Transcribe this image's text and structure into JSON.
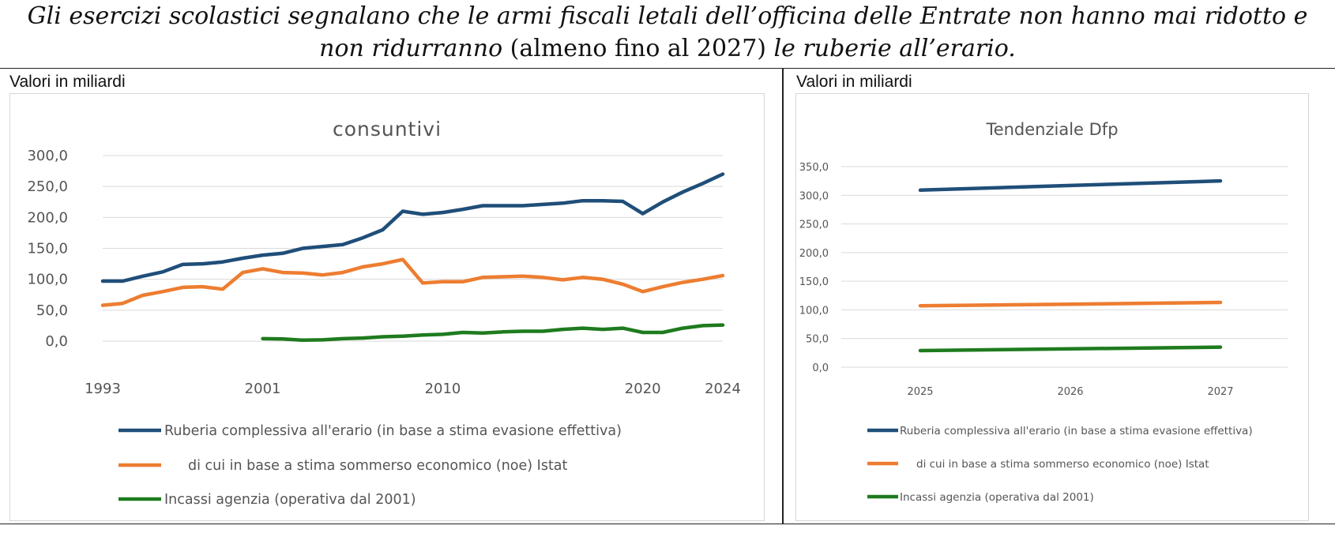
{
  "caption": {
    "line1": "Gli esercizi scolastici segnalano che le armi fiscali letali dell’officina delle Entrate non hanno mai ridotto e",
    "line2_italic_a": "non ridurranno",
    "line2_plain": " (almeno fino al 2027) ",
    "line2_italic_b": "le ruberie all’erario."
  },
  "colors": {
    "ruberia": "#1f4e79",
    "noe": "#ed7d31",
    "incassi": "#1e7b1e"
  },
  "chart_data": [
    {
      "type": "line",
      "unit_label": "Valori in miliardi",
      "title": "consuntivi",
      "ylim": [
        0,
        300
      ],
      "yticks": [
        "0,0",
        "50,0",
        "100,0",
        "150,0",
        "200,0",
        "250,0",
        "300,0"
      ],
      "xlim": [
        1993,
        2024
      ],
      "xtick_labels": [
        "1993",
        "2001",
        "2010",
        "2020",
        "2024"
      ],
      "xtick_values": [
        1993,
        2001,
        2010,
        2020,
        2024
      ],
      "series": [
        {
          "name": "Ruberia complessiva all'erario (in base a stima evasione effettiva)",
          "key": "ruberia",
          "x": [
            1993,
            1994,
            1995,
            1996,
            1997,
            1998,
            1999,
            2000,
            2001,
            2002,
            2003,
            2004,
            2005,
            2006,
            2007,
            2008,
            2009,
            2010,
            2011,
            2012,
            2013,
            2014,
            2015,
            2016,
            2017,
            2018,
            2019,
            2020,
            2021,
            2022,
            2023,
            2024
          ],
          "values": [
            97,
            97,
            105,
            112,
            124,
            125,
            128,
            134,
            139,
            142,
            150,
            153,
            156,
            167,
            180,
            210,
            205,
            208,
            213,
            219,
            219,
            219,
            221,
            223,
            227,
            227,
            226,
            206,
            225,
            241,
            255,
            270
          ]
        },
        {
          "name": "di cui in base a stima sommerso economico (noe) Istat",
          "key": "noe",
          "x": [
            1993,
            1994,
            1995,
            1996,
            1997,
            1998,
            1999,
            2000,
            2001,
            2002,
            2003,
            2004,
            2005,
            2006,
            2007,
            2008,
            2009,
            2010,
            2011,
            2012,
            2013,
            2014,
            2015,
            2016,
            2017,
            2018,
            2019,
            2020,
            2021,
            2022,
            2023,
            2024
          ],
          "values": [
            58,
            61,
            74,
            80,
            87,
            88,
            84,
            111,
            117,
            111,
            110,
            107,
            111,
            120,
            125,
            132,
            94,
            96,
            96,
            103,
            104,
            105,
            103,
            99,
            103,
            100,
            92,
            80,
            88,
            95,
            100,
            106
          ]
        },
        {
          "name": "Incassi agenzia (operativa dal 2001)",
          "key": "incassi",
          "x": [
            2001,
            2002,
            2003,
            2004,
            2005,
            2006,
            2007,
            2008,
            2009,
            2010,
            2011,
            2012,
            2013,
            2014,
            2015,
            2016,
            2017,
            2018,
            2019,
            2020,
            2021,
            2022,
            2023,
            2024
          ],
          "values": [
            4,
            3.5,
            1.5,
            2,
            4,
            5,
            7,
            8,
            10,
            11,
            14,
            13,
            15,
            16,
            16,
            19,
            21,
            19,
            21,
            14,
            14,
            21,
            25,
            26
          ]
        }
      ]
    },
    {
      "type": "line",
      "unit_label": "Valori in miliardi",
      "title": "Tendenziale Dfp",
      "ylim": [
        0,
        350
      ],
      "yticks": [
        "0,0",
        "50,0",
        "100,0",
        "150,0",
        "200,0",
        "250,0",
        "300,0",
        "350,0"
      ],
      "categories": [
        "2025",
        "2026",
        "2027"
      ],
      "series": [
        {
          "name": "Ruberia complessiva all'erario (in base a stima evasione effettiva)",
          "key": "ruberia",
          "values": [
            309,
            317,
            325
          ]
        },
        {
          "name": "di cui in base a stima sommerso economico (noe) Istat",
          "key": "noe",
          "values": [
            107,
            110,
            113
          ]
        },
        {
          "name": "Incassi agenzia (operativa dal 2001)",
          "key": "incassi",
          "values": [
            29,
            32,
            35
          ]
        }
      ]
    }
  ]
}
